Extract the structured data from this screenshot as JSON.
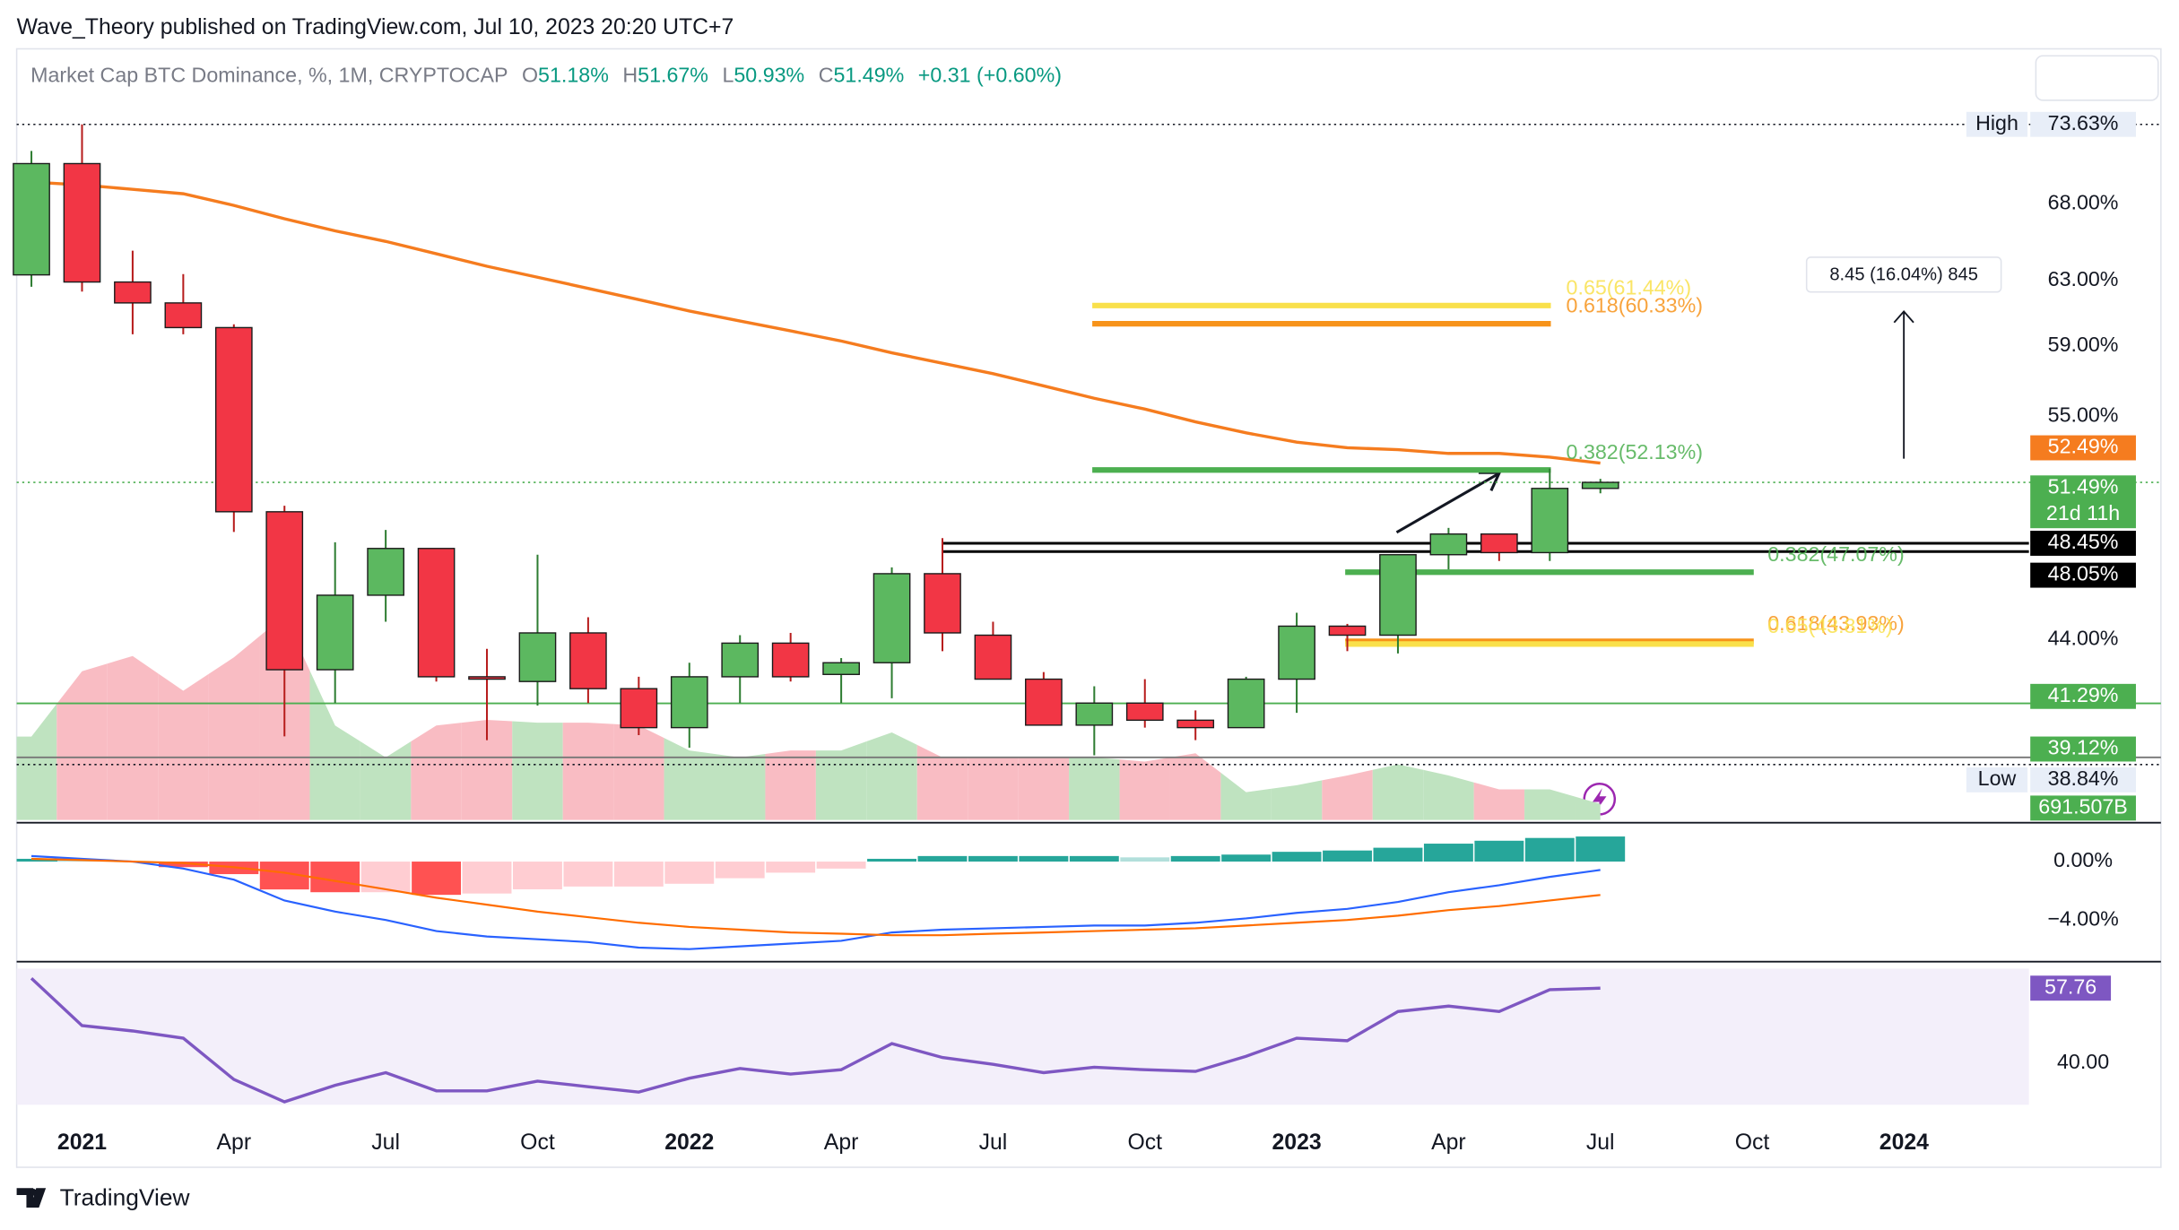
{
  "header": {
    "publisher": "Wave_Theory published on TradingView.com, Jul 10, 2023 20:20 UTC+7"
  },
  "footer": {
    "brand": "TradingView"
  },
  "chart_data": {
    "type": "candlestick",
    "log_scale": true,
    "grid": false,
    "ohlc_legend": {
      "symbol": "Market Cap BTC Dominance, %, 1M, CRYPTOCAP",
      "items": [
        {
          "key": "O",
          "label": "51.18%"
        },
        {
          "key": "H",
          "label": "51.67%"
        },
        {
          "key": "L",
          "label": "50.93%"
        },
        {
          "key": "C",
          "label": "51.49%"
        }
      ],
      "change": "+0.31 (+0.60%)"
    },
    "categories": [
      null,
      "2021",
      null,
      null,
      "Apr",
      null,
      null,
      "Jul",
      null,
      null,
      "Oct",
      null,
      null,
      "2022",
      null,
      null,
      "Apr",
      null,
      null,
      "Jul",
      null,
      null,
      "Oct",
      null,
      null,
      "2023",
      null,
      null,
      "Apr",
      null,
      null,
      "Jul",
      null,
      null,
      "Oct",
      null,
      null,
      "2024"
    ],
    "open": [
      63.35,
      70.8,
      62.9,
      61.6,
      60.1,
      50.0,
      42.7,
      46.0,
      48.2,
      42.4,
      42.2,
      44.3,
      41.9,
      40.3,
      42.4,
      43.85,
      42.5,
      43.0,
      47.0,
      44.2,
      42.3,
      40.4,
      41.3,
      40.6,
      40.3,
      42.3,
      44.6,
      44.2,
      47.9,
      48.9,
      48.0,
      51.18,
      null,
      null,
      null,
      null,
      null,
      null
    ],
    "high": [
      71.7,
      73.63,
      64.9,
      63.4,
      60.3,
      50.3,
      48.5,
      49.1,
      48.2,
      43.6,
      47.9,
      45.0,
      42.4,
      43.0,
      44.2,
      44.3,
      43.2,
      47.3,
      48.7,
      44.8,
      42.6,
      42.0,
      42.3,
      41.0,
      42.4,
      45.2,
      44.7,
      47.9,
      49.2,
      48.9,
      52.2,
      51.67,
      null,
      null,
      null,
      null,
      null,
      null
    ],
    "low": [
      62.6,
      62.3,
      59.7,
      59.7,
      49.0,
      39.95,
      41.3,
      44.8,
      42.2,
      39.8,
      41.2,
      41.3,
      40.0,
      39.5,
      41.3,
      42.2,
      41.3,
      41.5,
      43.5,
      42.3,
      40.4,
      39.2,
      40.3,
      39.8,
      40.3,
      40.9,
      43.5,
      43.4,
      47.2,
      47.6,
      47.6,
      50.93,
      null,
      null,
      null,
      null,
      null,
      null
    ],
    "close": [
      70.8,
      62.9,
      61.6,
      60.1,
      50.0,
      42.7,
      46.0,
      48.2,
      42.4,
      42.3,
      44.3,
      41.9,
      40.3,
      42.4,
      43.85,
      42.4,
      43.0,
      47.0,
      44.3,
      42.3,
      40.4,
      41.3,
      40.6,
      40.3,
      42.3,
      44.6,
      44.2,
      47.9,
      48.9,
      48.0,
      51.18,
      51.49,
      null,
      null,
      null,
      null,
      null,
      null
    ],
    "up_color": "#5cb860",
    "down_color": "#f23645",
    "ylim": [
      36.75,
      79.4
    ],
    "yticks": [
      {
        "value": 68,
        "label": "68.00%"
      },
      {
        "value": 63,
        "label": "63.00%"
      },
      {
        "value": 59,
        "label": "59.00%"
      },
      {
        "value": 55,
        "label": "55.00%"
      },
      {
        "value": 44,
        "label": "44.00%"
      }
    ],
    "ma": {
      "color": "#f57c1f",
      "values": [
        69.5,
        69.3,
        69.0,
        68.7,
        67.9,
        67.0,
        66.2,
        65.5,
        64.7,
        63.9,
        63.2,
        62.5,
        61.8,
        61.1,
        60.5,
        59.9,
        59.3,
        58.6,
        58.0,
        57.4,
        56.7,
        56.0,
        55.4,
        54.7,
        54.1,
        53.6,
        53.3,
        53.2,
        53.0,
        53.0,
        52.8,
        52.49,
        null,
        null,
        null,
        null,
        null,
        null
      ]
    },
    "volume": {
      "ylim": [
        0,
        33300
      ],
      "up_color": "#bfe3c0",
      "down_color": "#f9bcc3",
      "values": [
        3600,
        6420,
        7080,
        5580,
        7020,
        8820,
        4080,
        2700,
        4080,
        4320,
        4200,
        4200,
        4080,
        3000,
        2700,
        3000,
        3000,
        3780,
        2700,
        2700,
        2700,
        2700,
        2520,
        2880,
        1200,
        1500,
        1920,
        2400,
        1920,
        1320,
        1320,
        691.507,
        null,
        null,
        null,
        null,
        null,
        null
      ],
      "value_labels": [
        null,
        null,
        null,
        null,
        null,
        null,
        null,
        null,
        null,
        null,
        null,
        null,
        null,
        null,
        null,
        null,
        null,
        null,
        null,
        null,
        null,
        null,
        null,
        null,
        null,
        null,
        null,
        null,
        null,
        null,
        null,
        "691.507B",
        null,
        null,
        null,
        null,
        null,
        null
      ],
      "label_color": "#4caf50"
    },
    "levels": [
      {
        "label": "0.65(61.44%)",
        "value": 61.44,
        "color": "#f9e04b"
      },
      {
        "label": "0.618(60.33%)",
        "value": 60.33,
        "color": "#f7931a"
      },
      {
        "label": "0.382(52.13%)",
        "value": 52.13,
        "color": "#4caf50"
      },
      {
        "label": "0.382(47.07%)",
        "value": 47.07,
        "color": "#4caf50"
      },
      {
        "label": "0.618(43.93%)",
        "value": 43.93,
        "color": "#f7931a"
      },
      {
        "label": "0.65(43.81%)",
        "value": 43.81,
        "color": "#f9e04b"
      }
    ],
    "markers": [
      {
        "name": "High",
        "label": "73.63%",
        "value": 73.63,
        "color": "#e8eef8",
        "text_color": "#131722",
        "line_color": "#131722",
        "line_style": "dotted"
      },
      {
        "label": "52.49%",
        "value": 52.49,
        "color": "#f57c1f",
        "text_color": "#ffffff",
        "line_color": null,
        "line_style": null
      },
      {
        "label": "51.49%",
        "value": 51.49,
        "countdown": "21d 11h",
        "color": "#4caf50",
        "text_color": "#ffffff",
        "line_color": "#4caf50",
        "line_style": "dotted"
      },
      {
        "label": "48.45%",
        "value": 48.45,
        "color": "#000000",
        "text_color": "#ffffff",
        "line_color": "#000000",
        "line_style": "solid"
      },
      {
        "label": "48.05%",
        "value": 48.05,
        "color": "#000000",
        "text_color": "#ffffff",
        "line_color": "#000000",
        "line_style": "solid"
      },
      {
        "label": "41.29%",
        "value": 41.29,
        "color": "#4caf50",
        "text_color": "#ffffff",
        "line_color": "#4caf50",
        "line_style": "solid"
      },
      {
        "label": "39.12%",
        "value": 39.12,
        "color": "#4caf50",
        "text_color": "#ffffff",
        "line_color": "#777777",
        "line_style": "solid"
      },
      {
        "name": "Low",
        "label": "38.84%",
        "value": 38.84,
        "color": "#e8eef8",
        "text_color": "#131722",
        "line_color": "#131722",
        "line_style": "dotted"
      }
    ],
    "measure": {
      "label": "8.45 (16.04%) 845"
    },
    "macd": {
      "ylim": [
        -6.67,
        2.38
      ],
      "yticks": [
        {
          "value": 0,
          "label": "0.00%"
        },
        {
          "value": -4,
          "label": "−4.00%"
        }
      ],
      "histogram_colors": {
        "up_rising": "#26a69a",
        "up_falling": "#b2dfdb",
        "down_falling": "#ff5252",
        "down_rising": "#ffcdd2"
      },
      "histogram": [
        0.19,
        0.09,
        0,
        -0.38,
        -0.86,
        -1.91,
        -2.1,
        -2.1,
        -2.28,
        -2.19,
        -1.9,
        -1.71,
        -1.71,
        -1.52,
        -1.14,
        -0.76,
        -0.48,
        0.19,
        0.38,
        0.38,
        0.38,
        0.38,
        0.29,
        0.38,
        0.48,
        0.67,
        0.76,
        0.95,
        1.23,
        1.43,
        1.62,
        1.72,
        null,
        null,
        null,
        null,
        null,
        null
      ],
      "macd_color": "#2962ff",
      "macd_line": [
        0.38,
        0.19,
        0,
        -0.48,
        -1.24,
        -2.67,
        -3.43,
        -4.0,
        -4.76,
        -5.14,
        -5.33,
        -5.52,
        -5.9,
        -6.0,
        -5.81,
        -5.62,
        -5.43,
        -4.86,
        -4.67,
        -4.57,
        -4.48,
        -4.38,
        -4.38,
        -4.19,
        -3.9,
        -3.52,
        -3.24,
        -2.76,
        -2.1,
        -1.62,
        -1.05,
        -0.57,
        null,
        null,
        null,
        null,
        null,
        null
      ],
      "signal_color": "#ff6d00",
      "signal_line": [
        0.19,
        0.1,
        0,
        -0.1,
        -0.38,
        -0.76,
        -1.33,
        -1.9,
        -2.48,
        -2.95,
        -3.43,
        -3.81,
        -4.19,
        -4.48,
        -4.67,
        -4.86,
        -4.95,
        -5.05,
        -5.05,
        -4.95,
        -4.86,
        -4.76,
        -4.67,
        -4.57,
        -4.38,
        -4.19,
        -4.0,
        -3.71,
        -3.33,
        -3.05,
        -2.67,
        -2.29,
        null,
        null,
        null,
        null,
        null,
        null
      ]
    },
    "rsi": {
      "ylim": [
        30.1,
        62.4
      ],
      "yticks": [
        {
          "value": 40,
          "label": "40.00"
        }
      ],
      "color": "#7e57c2",
      "values": [
        60.1,
        48.9,
        47.6,
        45.9,
        36.1,
        30.8,
        34.7,
        37.7,
        33.4,
        33.4,
        35.7,
        34.4,
        33.1,
        36.4,
        38.7,
        37.4,
        38.4,
        44.6,
        41.3,
        39.7,
        37.7,
        39.0,
        38.4,
        38.0,
        41.6,
        45.9,
        45.3,
        52.2,
        53.5,
        52.2,
        57.4,
        57.76,
        null,
        null,
        null,
        null,
        null,
        null
      ]
    }
  }
}
